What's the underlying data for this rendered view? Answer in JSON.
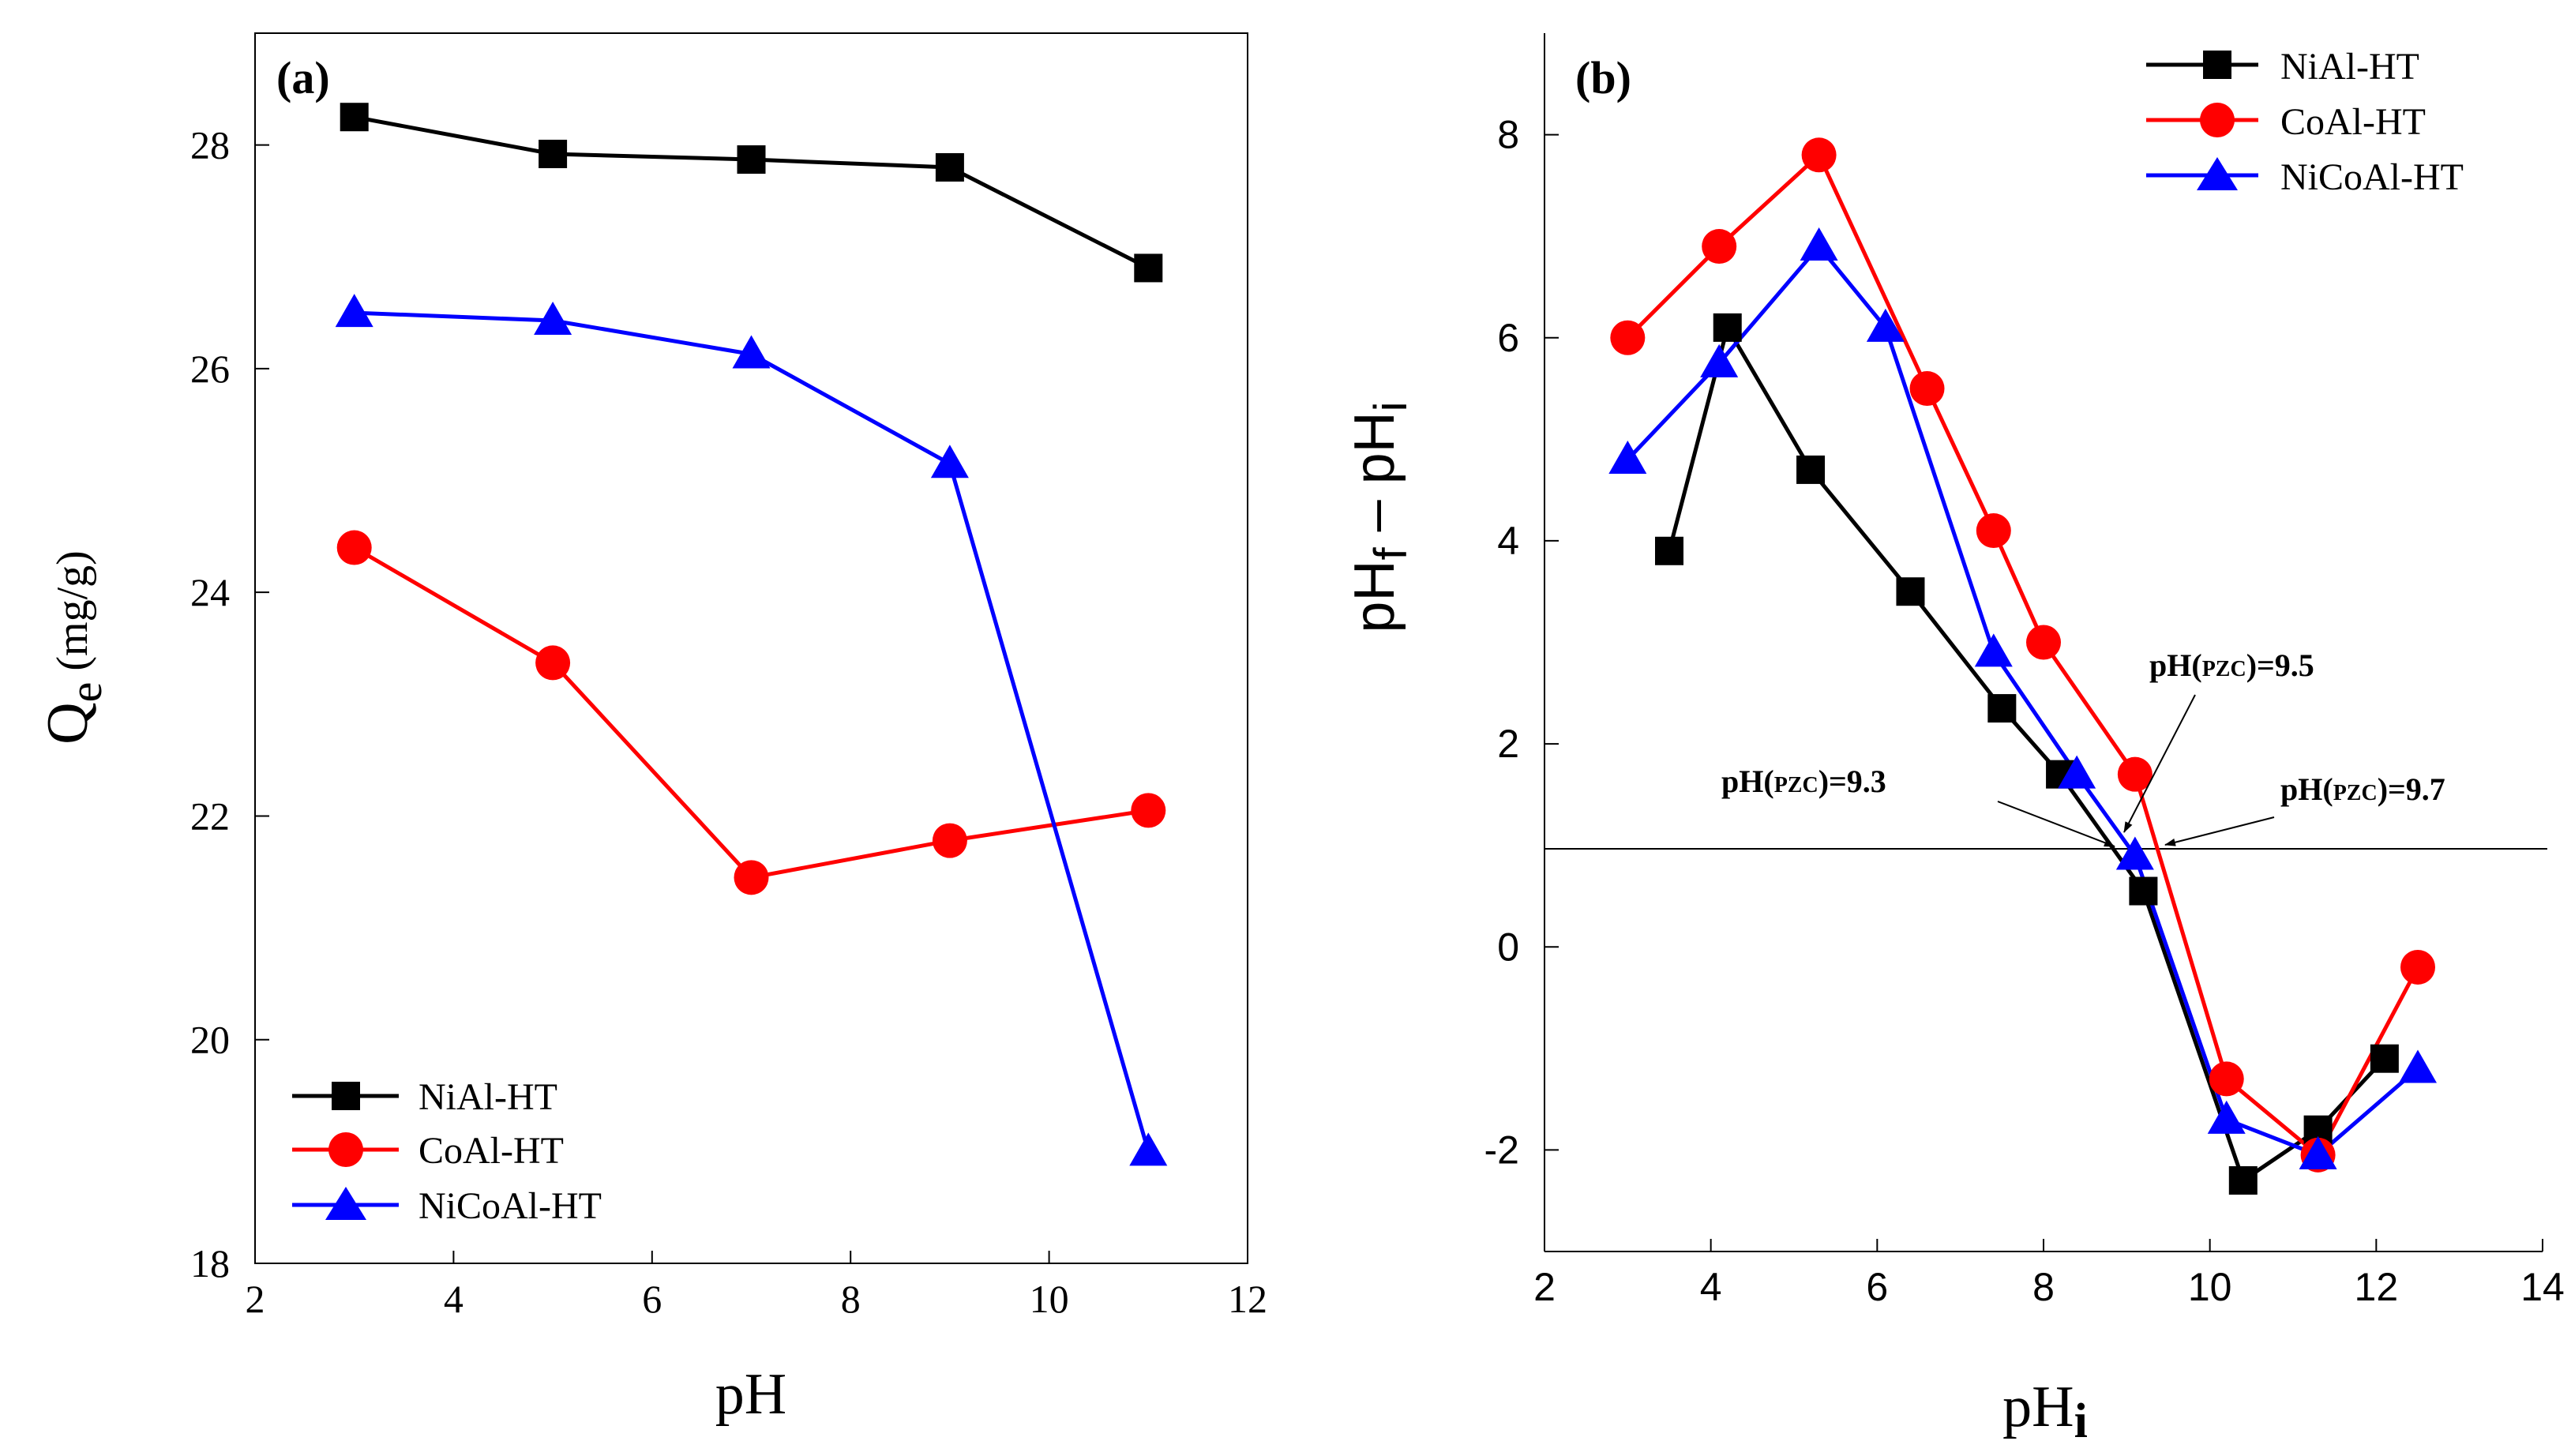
{
  "colors": {
    "NiAl-HT": "#000000",
    "CoAl-HT": "#ff0000",
    "NiCoAl-HT": "#0000ff"
  },
  "chart_data": [
    {
      "id": "a",
      "panel_label": "(a)",
      "type": "line",
      "xlabel": "pH",
      "ylabel_main": "Q",
      "ylabel_sub": "e",
      "ylabel_rest": " (mg/g)",
      "xlim": [
        2,
        12
      ],
      "ylim": [
        18,
        29
      ],
      "xticks": [
        2,
        4,
        6,
        8,
        10,
        12
      ],
      "yticks": [
        18,
        20,
        22,
        24,
        26,
        28
      ],
      "legend_position": "bottom-left",
      "series": [
        {
          "name": "NiAl-HT",
          "marker": "square",
          "x": [
            3,
            5,
            7,
            9,
            11
          ],
          "y": [
            28.25,
            27.92,
            27.87,
            27.8,
            26.9
          ]
        },
        {
          "name": "CoAl-HT",
          "marker": "circle",
          "x": [
            3,
            5,
            7,
            9,
            11
          ],
          "y": [
            24.4,
            23.37,
            21.45,
            21.78,
            22.05
          ]
        },
        {
          "name": "NiCoAl-HT",
          "marker": "triangle",
          "x": [
            3,
            5,
            7,
            9,
            11
          ],
          "y": [
            26.5,
            26.43,
            26.13,
            25.15,
            19.0
          ]
        }
      ]
    },
    {
      "id": "b",
      "panel_label": "(b)",
      "type": "line",
      "xlabel_main": "pH",
      "xlabel_sub": "i",
      "ylabel_main": "pH",
      "ylabel_sub1": "f",
      "ylabel_mid": " – pH",
      "ylabel_sub2": "i",
      "xlim": [
        2,
        14
      ],
      "ylim": [
        -3,
        9
      ],
      "xticks": [
        2,
        4,
        6,
        8,
        10,
        12,
        14
      ],
      "yticks": [
        -2,
        0,
        2,
        4,
        6,
        8
      ],
      "reference_line_y": 1,
      "legend_position": "top-right",
      "series": [
        {
          "name": "NiAl-HT",
          "marker": "square",
          "x": [
            3.5,
            4.2,
            5.2,
            6.4,
            7.5,
            8.2,
            9.2,
            10.4,
            11.3,
            12.1
          ],
          "y": [
            3.9,
            6.1,
            4.7,
            3.5,
            2.35,
            1.7,
            0.55,
            -2.3,
            -1.8,
            -1.1
          ]
        },
        {
          "name": "CoAl-HT",
          "marker": "circle",
          "x": [
            3.0,
            4.1,
            5.3,
            6.6,
            7.4,
            8.0,
            9.1,
            10.2,
            11.3,
            12.5
          ],
          "y": [
            6.0,
            6.9,
            7.8,
            5.5,
            4.1,
            3.0,
            1.7,
            -1.3,
            -2.05,
            -0.2
          ]
        },
        {
          "name": "NiCoAl-HT",
          "marker": "triangle",
          "x": [
            3.0,
            4.1,
            5.3,
            6.1,
            7.4,
            8.4,
            9.1,
            10.2,
            11.3,
            12.5
          ],
          "y": [
            4.8,
            5.75,
            6.9,
            6.1,
            2.9,
            1.7,
            0.9,
            -1.7,
            -2.05,
            -1.2
          ]
        }
      ],
      "annotations": [
        {
          "prefix": "pH(",
          "small": "PZC",
          "suffix": ")=9.5"
        },
        {
          "prefix": "pH(",
          "small": "PZC",
          "suffix": ")=9.3"
        },
        {
          "prefix": "pH(",
          "small": "PZC",
          "suffix": ")=9.7"
        }
      ]
    }
  ]
}
